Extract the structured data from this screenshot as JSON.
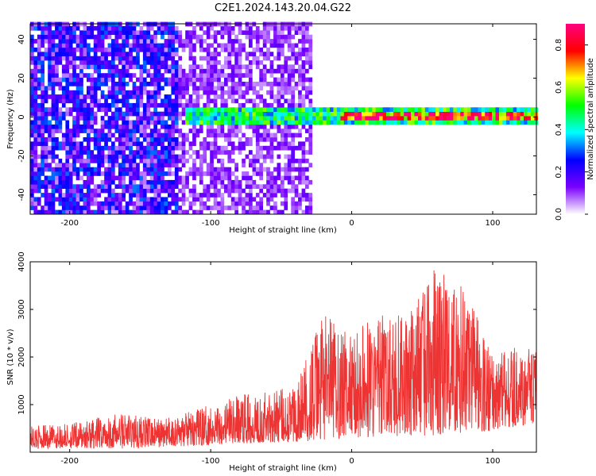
{
  "title": "C2E1.2024.143.20.04.G22",
  "colors": {
    "snr_line": "#ee3333",
    "frame": "#000000",
    "colormap": [
      "#ffffff",
      "#7a00ff",
      "#0000ff",
      "#00ffff",
      "#00ff00",
      "#ffff00",
      "#ff0000",
      "#ff0080"
    ]
  },
  "chart_data": [
    {
      "type": "heatmap",
      "xlabel": "Height of straight line (km)",
      "ylabel": "Frequency (Hz)",
      "xlim": [
        -228,
        131
      ],
      "ylim": [
        -50,
        48
      ],
      "xticks": [
        -200,
        -100,
        0,
        100
      ],
      "yticks": [
        -40,
        -20,
        0,
        20,
        40
      ],
      "grid": false,
      "features": [
        {
          "x_range": [
            -228,
            -125
          ],
          "y_range": [
            -50,
            48
          ],
          "amplitude": 0.2
        },
        {
          "x_range": [
            -125,
            -30
          ],
          "y_range": [
            -50,
            48
          ],
          "amplitude": 0.1
        },
        {
          "x_range": [
            -120,
            131
          ],
          "y_center": 0,
          "y_halfwidth": 5,
          "amplitude": 0.5
        },
        {
          "x_range": [
            -10,
            131
          ],
          "y_center": 0,
          "y_halfwidth": 2,
          "amplitude": 0.9
        }
      ],
      "colorbar": {
        "label": "Normalized spectral amplitude",
        "range": [
          0.0,
          0.9
        ],
        "ticks": [
          "0.0",
          "0.2",
          "0.4",
          "0.6",
          "0.8"
        ]
      }
    },
    {
      "type": "line",
      "xlabel": "Height of straight line (km)",
      "ylabel": "SNR (10 * v/v)",
      "xlim": [
        -228,
        131
      ],
      "ylim": [
        0,
        4000
      ],
      "xticks": [
        -200,
        -100,
        0,
        100
      ],
      "yticks": [
        1000,
        2000,
        3000,
        4000
      ],
      "grid": false,
      "series": [
        {
          "x": [
            -228,
            -200,
            -160,
            -140,
            -120,
            -100,
            -80,
            -60,
            -40,
            -20,
            0,
            20,
            40,
            60,
            80,
            100,
            131
          ],
          "y_min": [
            80,
            80,
            80,
            100,
            120,
            150,
            180,
            200,
            220,
            250,
            300,
            320,
            350,
            350,
            400,
            450,
            600
          ],
          "y_max": [
            550,
            600,
            850,
            700,
            800,
            1000,
            1200,
            1300,
            1400,
            2900,
            2500,
            2900,
            2900,
            3950,
            3450,
            2200,
            2200
          ]
        }
      ]
    }
  ]
}
